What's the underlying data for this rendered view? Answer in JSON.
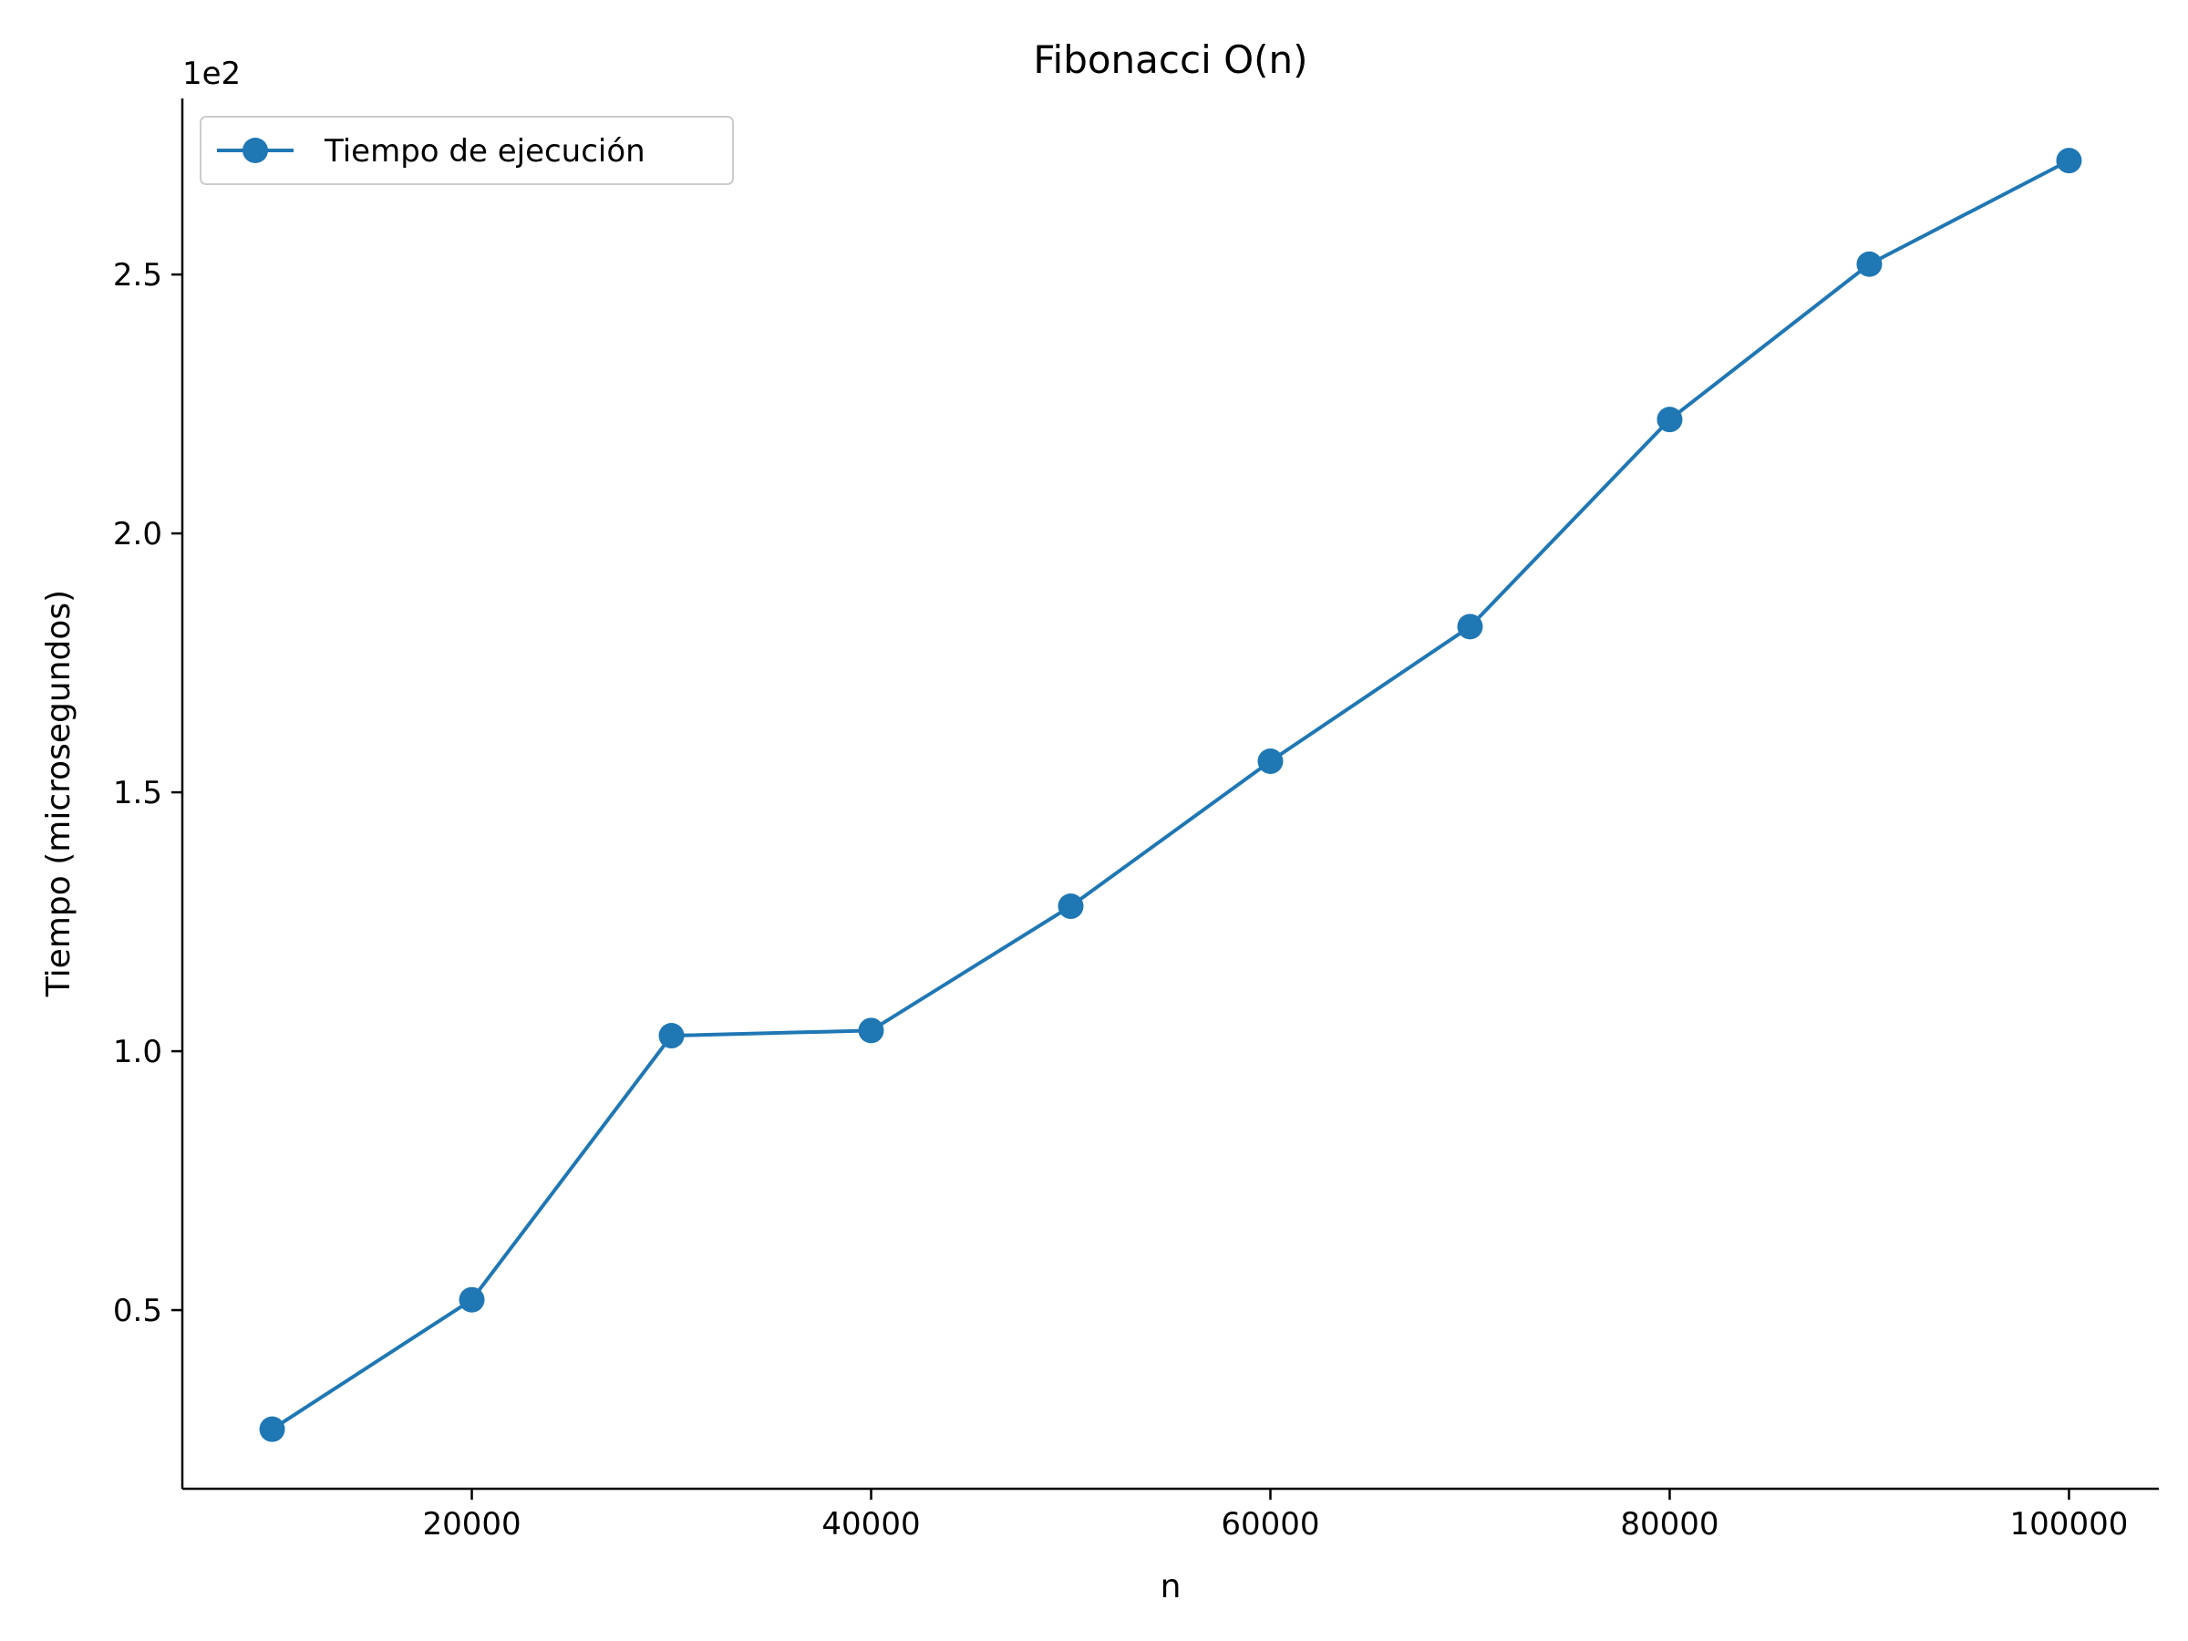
{
  "chart_data": {
    "type": "line",
    "title": "Fibonacci O(n)",
    "xlabel": "n",
    "ylabel": "Tiempo (microsegundos)",
    "y_offset_label": "1e2",
    "xlim": [
      5500,
      104500
    ],
    "ylim": [
      0.155,
      2.84
    ],
    "x_ticks": [
      20000,
      40000,
      60000,
      80000,
      100000
    ],
    "x_tick_labels": [
      "20000",
      "40000",
      "60000",
      "80000",
      "100000"
    ],
    "y_ticks": [
      0.5,
      1.0,
      1.5,
      2.0,
      2.5
    ],
    "y_tick_labels": [
      "0.5",
      "1.0",
      "1.5",
      "2.0",
      "2.5"
    ],
    "grid": false,
    "legend_position": "top-left",
    "series": [
      {
        "name": "Tiempo de ejecución",
        "color": "#1f77b4",
        "marker": "circle",
        "x": [
          10000,
          20000,
          30000,
          40000,
          50000,
          60000,
          70000,
          80000,
          90000,
          100000
        ],
        "y": [
          0.27,
          0.52,
          1.03,
          1.04,
          1.28,
          1.56,
          1.82,
          2.22,
          2.52,
          2.72
        ]
      }
    ]
  }
}
